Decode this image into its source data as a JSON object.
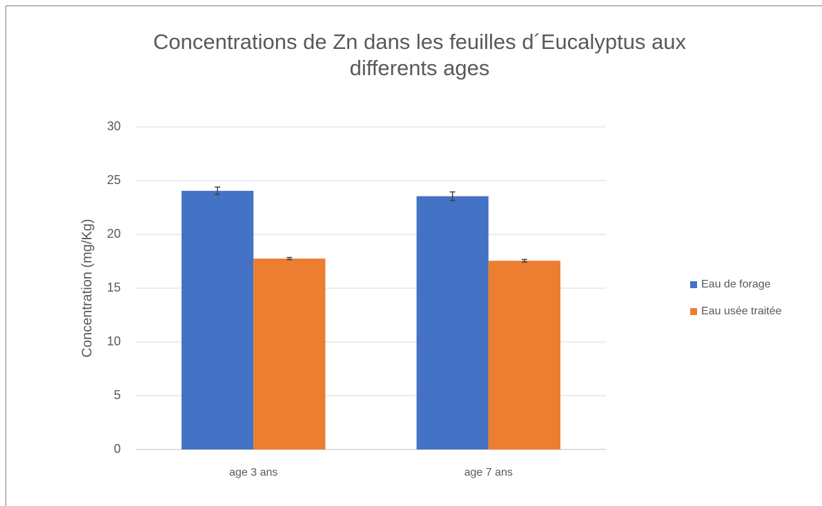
{
  "chart_data": {
    "type": "bar",
    "title": "Concentrations de Zn dans les feuilles d´Eucalyptus aux differents ages",
    "y_label": "Concentration (mg/Kg)",
    "categories": [
      "age 3 ans",
      "age 7 ans"
    ],
    "series": [
      {
        "name": "Eau de forage",
        "color": "#4472c4",
        "values": [
          24.05,
          23.55
        ],
        "errors": [
          0.35,
          0.4
        ]
      },
      {
        "name": "Eau usée traitée",
        "color": "#ed7d31",
        "values": [
          17.75,
          17.55
        ],
        "errors": [
          0.1,
          0.12
        ]
      }
    ],
    "ylim": [
      0,
      30
    ],
    "yticks": [
      0,
      5,
      10,
      15,
      20,
      25,
      30
    ],
    "grid": true,
    "legend": "right"
  }
}
